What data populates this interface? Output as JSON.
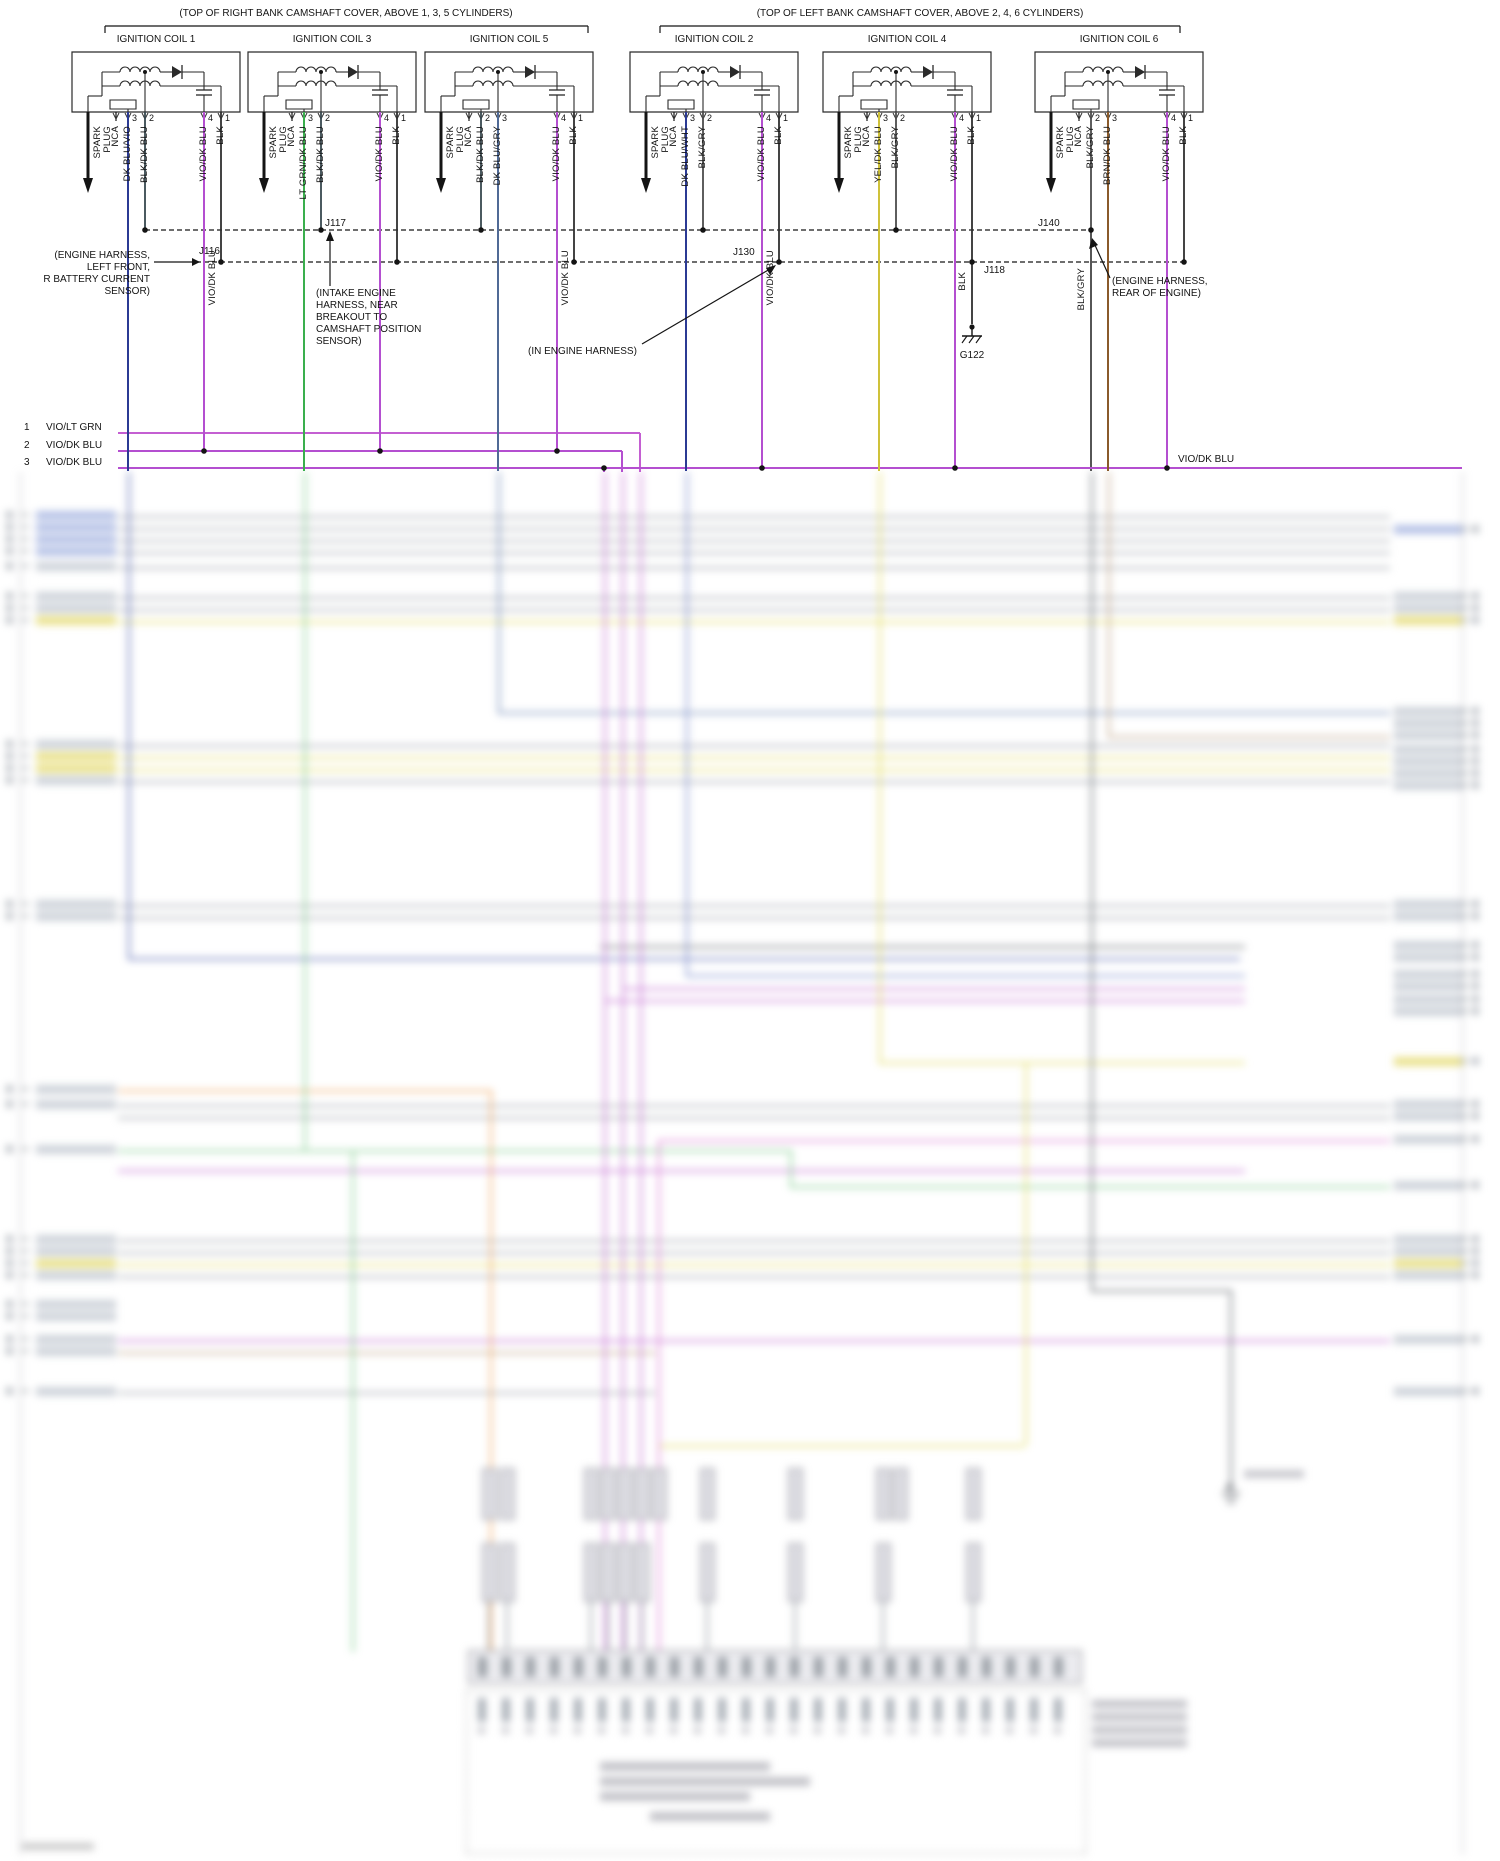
{
  "bank_headers": [
    "(TOP OF RIGHT BANK CAMSHAFT COVER, ABOVE 1, 3, 5 CYLINDERS)",
    "(TOP OF LEFT BANK CAMSHAFT COVER, ABOVE 2, 4, 6 CYLINDERS)"
  ],
  "shared": {
    "spark_line1": "SPARK",
    "spark_line2": "PLUG",
    "nca": "NCA"
  },
  "coils": [
    {
      "title": "IGNITION COIL 1",
      "pins": [
        {
          "num": "3",
          "wire": "DK BLU/VIO"
        },
        {
          "num": "2",
          "wire": "BLK/DK BLU"
        },
        {
          "num": "4",
          "wire": "VIO/DK BLU"
        },
        {
          "num": "1",
          "wire": "BLK"
        }
      ]
    },
    {
      "title": "IGNITION COIL 3",
      "pins": [
        {
          "num": "3",
          "wire": "LT GRN/DK BLU"
        },
        {
          "num": "2",
          "wire": "BLK/DK BLU"
        },
        {
          "num": "4",
          "wire": "VIO/DK BLU"
        },
        {
          "num": "1",
          "wire": "BLK"
        }
      ]
    },
    {
      "title": "IGNITION COIL 5",
      "pins": [
        {
          "num": "2",
          "wire": "BLK/DK BLU"
        },
        {
          "num": "3",
          "wire": "DK BLU/GRY"
        },
        {
          "num": "4",
          "wire": "VIO/DK BLU"
        },
        {
          "num": "1",
          "wire": "BLK"
        }
      ]
    },
    {
      "title": "IGNITION COIL 2",
      "pins": [
        {
          "num": "3",
          "wire": "DK BLU/WHT"
        },
        {
          "num": "2",
          "wire": "BLK/GRY"
        },
        {
          "num": "4",
          "wire": "VIO/DK BLU"
        },
        {
          "num": "1",
          "wire": "BLK"
        }
      ]
    },
    {
      "title": "IGNITION COIL 4",
      "pins": [
        {
          "num": "3",
          "wire": "YEL/DK BLU"
        },
        {
          "num": "2",
          "wire": "BLK/GRY"
        },
        {
          "num": "4",
          "wire": "VIO/DK BLU"
        },
        {
          "num": "1",
          "wire": "BLK"
        }
      ]
    },
    {
      "title": "IGNITION COIL 6",
      "pins": [
        {
          "num": "2",
          "wire": "BLK/GRY"
        },
        {
          "num": "3",
          "wire": "BRN/DK BLU"
        },
        {
          "num": "4",
          "wire": "VIO/DK BLU"
        },
        {
          "num": "1",
          "wire": "BLK"
        }
      ]
    }
  ],
  "splices": {
    "j116": "J116",
    "j117": "J117",
    "j118": "J118",
    "j130": "J130",
    "j140": "J140"
  },
  "grounds": {
    "g122": "G122"
  },
  "annotations": {
    "left": [
      "(ENGINE HARNESS,",
      "LEFT FRONT,",
      "R BATTERY CURRENT",
      "SENSOR)"
    ],
    "intake": [
      "(INTAKE ENGINE",
      "HARNESS, NEAR",
      "BREAKOUT TO",
      "CAMSHAFT POSITION",
      "SENSOR)"
    ],
    "in_harness": "(IN ENGINE HARNESS)",
    "rear": [
      "(ENGINE HARNESS,",
      "REAR OF ENGINE)"
    ]
  },
  "mid_labels": {
    "vio": "VIO/DK BLU",
    "blk": "BLK",
    "blk_gry": "BLK/GRY"
  },
  "left_rows": [
    {
      "num": "1",
      "wire": "VIO/LT GRN"
    },
    {
      "num": "2",
      "wire": "VIO/DK BLU"
    },
    {
      "num": "3",
      "wire": "VIO/DK BLU"
    }
  ],
  "right_row": {
    "wire": "VIO/DK BLU"
  },
  "wire_colors": {
    "DK BLU/VIO": "#2b3a94",
    "BLK/DK BLU": "#37474f",
    "VIO/DK BLU": "#b44fd0",
    "BLK": "#2f2f2f",
    "LT GRN/DK BLU": "#3aaf4d",
    "DK BLU/GRY": "#506a96",
    "DK BLU/WHT": "#2b3a94",
    "BLK/GRY": "#4d4d4d",
    "YEL/DK BLU": "#cfc23a",
    "BRN/DK BLU": "#8a5a2b",
    "VIO/LT GRN": "#c45fd2"
  },
  "palette": {
    "line": "#141414",
    "bus": "#3f3f3f",
    "violet": "#b44fd0"
  }
}
